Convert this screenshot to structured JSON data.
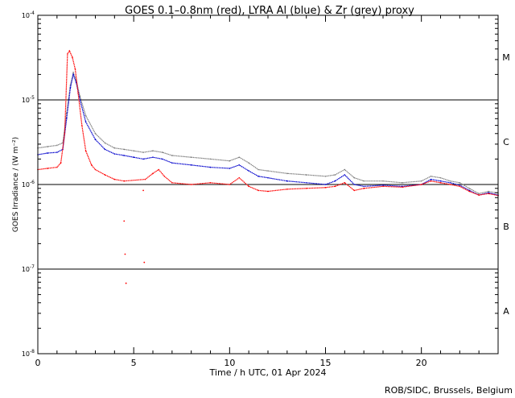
{
  "chart_data": {
    "type": "line",
    "title": "GOES 0.1–0.8nm (red), LYRA Al (blue) & Zr (grey) proxy",
    "xlabel": "Time / h UTC, 01 Apr 2024",
    "ylabel": "GOES Irradiance / (W m⁻²)",
    "credit": "ROB/SIDC, Brussels, Belgium",
    "xlim": [
      0,
      24
    ],
    "ylim": [
      1e-08,
      0.0001
    ],
    "yscale": "log",
    "x_ticks": [
      0,
      5,
      10,
      15,
      20
    ],
    "x_tick_labels": [
      "0",
      "5",
      "10",
      "15",
      "20"
    ],
    "y_ticks": [
      1e-08,
      1e-07,
      1e-06,
      1e-05,
      0.0001
    ],
    "y_tick_labels": [
      {
        "base": "10",
        "exp": "-8"
      },
      {
        "base": "10",
        "exp": "-7"
      },
      {
        "base": "10",
        "exp": "-6"
      },
      {
        "base": "10",
        "exp": "-5"
      },
      {
        "base": "10",
        "exp": "-4"
      }
    ],
    "class_labels": [
      {
        "label": "M",
        "level": 3.2e-05
      },
      {
        "label": "C",
        "level": 3.2e-06
      },
      {
        "label": "B",
        "level": 3.2e-07
      },
      {
        "label": "A",
        "level": 3.2e-08
      }
    ],
    "class_lines": [
      1e-07,
      1e-06,
      1e-05
    ],
    "series": [
      {
        "name": "LYRA Zr (grey) proxy",
        "color": "#808080",
        "points": [
          [
            0.0,
            2.7e-06
          ],
          [
            0.5,
            2.8e-06
          ],
          [
            1.0,
            2.9e-06
          ],
          [
            1.3,
            3.1e-06
          ],
          [
            1.5,
            7e-06
          ],
          [
            1.7,
            1.5e-05
          ],
          [
            1.85,
            2.1e-05
          ],
          [
            2.0,
            1.7e-05
          ],
          [
            2.2,
            1.1e-05
          ],
          [
            2.5,
            6.5e-06
          ],
          [
            3.0,
            4e-06
          ],
          [
            3.5,
            3.1e-06
          ],
          [
            4.0,
            2.7e-06
          ],
          [
            4.5,
            2.6e-06
          ],
          [
            5.0,
            2.5e-06
          ],
          [
            5.5,
            2.4e-06
          ],
          [
            6.0,
            2.5e-06
          ],
          [
            6.5,
            2.4e-06
          ],
          [
            7.0,
            2.2e-06
          ],
          [
            8.0,
            2.1e-06
          ],
          [
            9.0,
            2e-06
          ],
          [
            10.0,
            1.9e-06
          ],
          [
            10.5,
            2.1e-06
          ],
          [
            11.0,
            1.8e-06
          ],
          [
            11.5,
            1.5e-06
          ],
          [
            12.0,
            1.45e-06
          ],
          [
            13.0,
            1.35e-06
          ],
          [
            14.0,
            1.3e-06
          ],
          [
            15.0,
            1.25e-06
          ],
          [
            15.5,
            1.3e-06
          ],
          [
            16.0,
            1.5e-06
          ],
          [
            16.5,
            1.2e-06
          ],
          [
            17.0,
            1.1e-06
          ],
          [
            18.0,
            1.1e-06
          ],
          [
            19.0,
            1.05e-06
          ],
          [
            20.0,
            1.1e-06
          ],
          [
            20.5,
            1.25e-06
          ],
          [
            21.0,
            1.2e-06
          ],
          [
            21.5,
            1.1e-06
          ],
          [
            22.0,
            1.05e-06
          ],
          [
            22.5,
            9e-07
          ],
          [
            23.0,
            7.8e-07
          ],
          [
            23.5,
            8.3e-07
          ],
          [
            24.0,
            7.9e-07
          ]
        ]
      },
      {
        "name": "LYRA Al (blue) proxy",
        "color": "#0000cc",
        "points": [
          [
            0.0,
            2.25e-06
          ],
          [
            0.5,
            2.35e-06
          ],
          [
            1.0,
            2.4e-06
          ],
          [
            1.3,
            2.6e-06
          ],
          [
            1.5,
            6e-06
          ],
          [
            1.7,
            1.4e-05
          ],
          [
            1.85,
            2e-05
          ],
          [
            2.0,
            1.6e-05
          ],
          [
            2.2,
            1e-05
          ],
          [
            2.5,
            5.5e-06
          ],
          [
            3.0,
            3.4e-06
          ],
          [
            3.5,
            2.6e-06
          ],
          [
            4.0,
            2.3e-06
          ],
          [
            4.5,
            2.2e-06
          ],
          [
            5.0,
            2.1e-06
          ],
          [
            5.5,
            2e-06
          ],
          [
            6.0,
            2.1e-06
          ],
          [
            6.5,
            2e-06
          ],
          [
            7.0,
            1.8e-06
          ],
          [
            8.0,
            1.7e-06
          ],
          [
            9.0,
            1.6e-06
          ],
          [
            10.0,
            1.55e-06
          ],
          [
            10.5,
            1.7e-06
          ],
          [
            11.0,
            1.45e-06
          ],
          [
            11.5,
            1.25e-06
          ],
          [
            12.0,
            1.2e-06
          ],
          [
            13.0,
            1.1e-06
          ],
          [
            14.0,
            1.05e-06
          ],
          [
            15.0,
            1e-06
          ],
          [
            15.5,
            1.1e-06
          ],
          [
            16.0,
            1.3e-06
          ],
          [
            16.5,
            1e-06
          ],
          [
            17.0,
            9.5e-07
          ],
          [
            18.0,
            9.8e-07
          ],
          [
            19.0,
            9.5e-07
          ],
          [
            20.0,
            1e-06
          ],
          [
            20.5,
            1.15e-06
          ],
          [
            21.0,
            1.1e-06
          ],
          [
            21.5,
            1.05e-06
          ],
          [
            22.0,
            9.8e-07
          ],
          [
            22.5,
            8.5e-07
          ],
          [
            23.0,
            7.5e-07
          ],
          [
            23.5,
            8e-07
          ],
          [
            24.0,
            7.5e-07
          ]
        ]
      },
      {
        "name": "GOES 0.1–0.8nm (red)",
        "color": "#ff0000",
        "points": [
          [
            0.0,
            1.5e-06
          ],
          [
            0.5,
            1.55e-06
          ],
          [
            1.0,
            1.6e-06
          ],
          [
            1.2,
            1.8e-06
          ],
          [
            1.4,
            4e-06
          ],
          [
            1.55,
            3.5e-05
          ],
          [
            1.65,
            3.8e-05
          ],
          [
            1.8,
            3.2e-05
          ],
          [
            1.95,
            2.3e-05
          ],
          [
            2.1,
            1.2e-05
          ],
          [
            2.3,
            5e-06
          ],
          [
            2.5,
            2.5e-06
          ],
          [
            2.8,
            1.7e-06
          ],
          [
            3.0,
            1.5e-06
          ],
          [
            3.5,
            1.3e-06
          ],
          [
            4.0,
            1.15e-06
          ],
          [
            4.5,
            1.1e-06
          ],
          [
            5.6,
            1.15e-06
          ],
          [
            6.0,
            1.35e-06
          ],
          [
            6.3,
            1.5e-06
          ],
          [
            6.6,
            1.25e-06
          ],
          [
            7.0,
            1.05e-06
          ],
          [
            8.0,
            1e-06
          ],
          [
            9.0,
            1.05e-06
          ],
          [
            10.0,
            1e-06
          ],
          [
            10.5,
            1.2e-06
          ],
          [
            11.0,
            9.5e-07
          ],
          [
            11.5,
            8.5e-07
          ],
          [
            12.0,
            8.3e-07
          ],
          [
            13.0,
            8.8e-07
          ],
          [
            14.0,
            9e-07
          ],
          [
            15.0,
            9.2e-07
          ],
          [
            15.5,
            9.5e-07
          ],
          [
            16.0,
            1.05e-06
          ],
          [
            16.5,
            8.5e-07
          ],
          [
            17.0,
            9e-07
          ],
          [
            18.0,
            9.5e-07
          ],
          [
            19.0,
            9.3e-07
          ],
          [
            20.0,
            1e-06
          ],
          [
            20.5,
            1.1e-06
          ],
          [
            21.0,
            1.05e-06
          ],
          [
            21.5,
            1e-06
          ],
          [
            22.0,
            9.5e-07
          ],
          [
            22.5,
            8.3e-07
          ],
          [
            23.0,
            7.5e-07
          ],
          [
            23.5,
            7.8e-07
          ],
          [
            24.0,
            7.4e-07
          ]
        ],
        "scatter_points": [
          [
            4.5,
            3.7e-07
          ],
          [
            4.55,
            1.5e-07
          ],
          [
            4.6,
            6.8e-08
          ],
          [
            5.5,
            8.5e-07
          ],
          [
            5.55,
            1.2e-07
          ]
        ]
      }
    ]
  }
}
